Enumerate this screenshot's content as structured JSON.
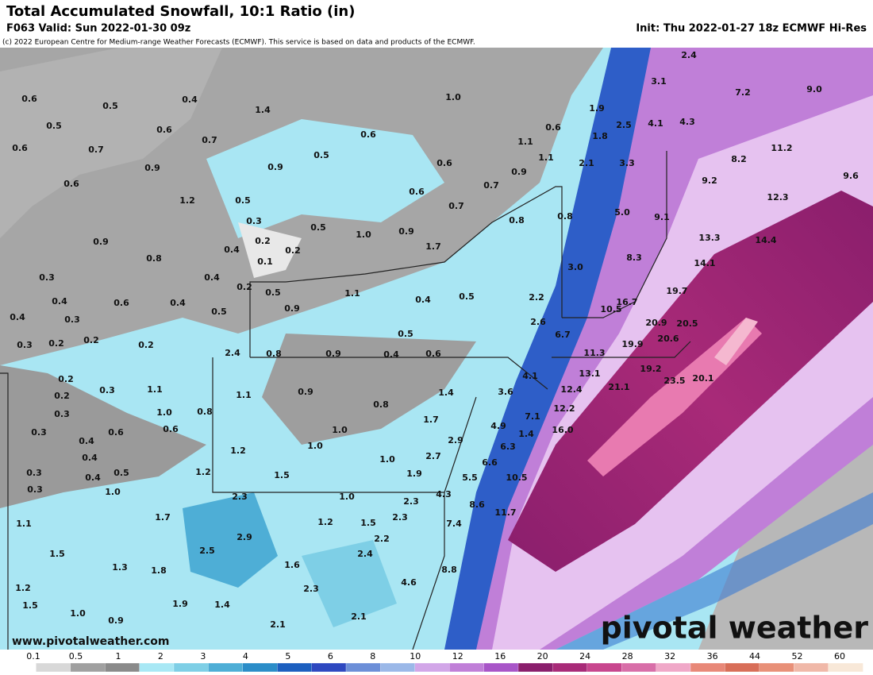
{
  "header": {
    "title": "Total Accumulated Snowfall, 10:1 Ratio (in)",
    "valid": "F063 Valid: Sun 2022-01-30 09z",
    "init": "Init: Thu 2022-01-27 18z ECMWF Hi-Res",
    "credit": "(c) 2022 European Centre for Medium-range Weather Forecasts (ECMWF). This service is based on data and products of the ECMWF."
  },
  "map": {
    "labels": [
      "0.6",
      "0.5",
      "0.4",
      "1.4",
      "1.0",
      "0.5",
      "0.6",
      "0.7",
      "0.6",
      "0.6",
      "1.9",
      "2.5",
      "4.1",
      "4.3",
      "3.1",
      "2.4",
      "7.2",
      "9.0",
      "0.6",
      "0.7",
      "0.9",
      "0.9",
      "0.5",
      "1.1",
      "1.8",
      "0.6",
      "1.1",
      "0.9",
      "2.1",
      "3.3",
      "8.2",
      "11.2",
      "0.6",
      "1.2",
      "0.5",
      "0.6",
      "0.7",
      "9.2",
      "9.6",
      "12.3",
      "0.7",
      "0.8",
      "5.0",
      "9.1",
      "0.3",
      "0.5",
      "1.0",
      "0.9",
      "0.8",
      "0.9",
      "0.2",
      "0.2",
      "0.4",
      "1.7",
      "13.3",
      "14.4",
      "0.8",
      "0.1",
      "8.3",
      "14.1",
      "0.3",
      "0.4",
      "0.2",
      "3.0",
      "0.4",
      "0.6",
      "0.4",
      "0.5",
      "1.1",
      "0.4",
      "0.5",
      "2.2",
      "0.9",
      "0.5",
      "10.5",
      "16.7",
      "19.7",
      "0.4",
      "0.3",
      "0.2",
      "0.3",
      "0.2",
      "0.2",
      "2.6",
      "0.5",
      "20.9",
      "20.5",
      "6.7",
      "2.4",
      "0.8",
      "0.9",
      "0.4",
      "0.6",
      "11.3",
      "19.9",
      "20.6",
      "4.1",
      "13.1",
      "19.2",
      "20.1",
      "23.5",
      "0.2",
      "0.3",
      "1.1",
      "1.1",
      "0.9",
      "1.4",
      "3.6",
      "12.4",
      "21.1",
      "0.2",
      "0.8",
      "12.2",
      "0.3",
      "1.0",
      "0.8",
      "1.7",
      "7.1",
      "4.9",
      "16.0",
      "0.3",
      "0.6",
      "0.6",
      "1.0",
      "1.4",
      "0.4",
      "2.9",
      "1.0",
      "6.3",
      "1.2",
      "0.4",
      "2.7",
      "1.0",
      "6.6",
      "0.3",
      "0.5",
      "1.2",
      "1.5",
      "1.9",
      "5.5",
      "10.5",
      "0.4",
      "0.3",
      "1.0",
      "2.3",
      "1.0",
      "4.3",
      "2.3",
      "8.6",
      "11.7",
      "1.1",
      "1.7",
      "1.2",
      "1.5",
      "2.3",
      "7.4",
      "2.2",
      "2.9",
      "2.5",
      "1.5",
      "2.4",
      "1.3",
      "1.8",
      "1.6",
      "8.8",
      "4.6",
      "1.2",
      "2.3",
      "1.5",
      "1.9",
      "1.4",
      "1.0",
      "0.9",
      "2.1",
      "2.1"
    ]
  },
  "legend": {
    "ticks": [
      0.1,
      0.5,
      1,
      2,
      3,
      4,
      5,
      6,
      8,
      10,
      12,
      16,
      20,
      24,
      28,
      32,
      36,
      44,
      52,
      60
    ],
    "colors": [
      "#ffffff",
      "#d8d8d8",
      "#a0a0a0",
      "#8a8a8a",
      "#a8e8f5",
      "#7ecfe6",
      "#4eaed6",
      "#2b8dc8",
      "#1c5fbf",
      "#2e48c0",
      "#6c8fd8",
      "#9bb8e8",
      "#d2a6e8",
      "#c07fd8",
      "#a855c8",
      "#8a1e6c",
      "#a82a78",
      "#c8468e",
      "#d86ea8",
      "#f0a8c8",
      "#e88878",
      "#d86e58",
      "#e89078",
      "#f0b8a8",
      "#f8e8d8"
    ]
  },
  "footer": {
    "url": "www.pivotalweather.com",
    "logo": "pivotal weather"
  }
}
